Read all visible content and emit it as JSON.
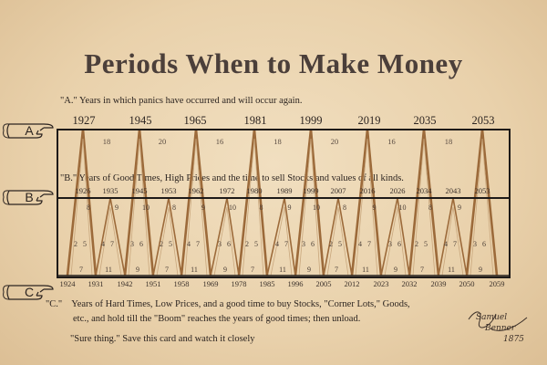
{
  "title": "Periods When to Make Money",
  "captions": {
    "a": "\"A.\" Years in which panics have occurred and will occur again.",
    "b": "\"B.\" Years of Good Times, High Prices and the time to sell Stocks and values of all kinds.",
    "c_lead": "\"C.\"",
    "c_line1": "Years of Hard Times, Low Prices, and a good time to buy Stocks, \"Corner Lots,\" Goods,",
    "c_line2": "etc., and hold till  the \"Boom\" reaches the years of good times; then unload.",
    "sure": "\"Sure thing.\" Save this card and watch it closely"
  },
  "row_labels": [
    "A",
    "B",
    "C"
  ],
  "panic_years": [
    "1927",
    "1945",
    "1965",
    "1981",
    "1999",
    "2019",
    "2035",
    "2053"
  ],
  "panic_gaps": [
    "18",
    "20",
    "16",
    "18",
    "20",
    "16",
    "18"
  ],
  "good_years": [
    "1926",
    "1935",
    "1945",
    "1953",
    "1962",
    "1972",
    "1980",
    "1989",
    "1999",
    "2007",
    "2016",
    "2026",
    "2034",
    "2043",
    "2053"
  ],
  "hard_years": [
    "1924",
    "1931",
    "1942",
    "1951",
    "1958",
    "1969",
    "1978",
    "1985",
    "1996",
    "2005",
    "2012",
    "2023",
    "2032",
    "2039",
    "2050",
    "2059"
  ],
  "upper_gap_numbers": [
    "8",
    "9",
    "10",
    "8",
    "9",
    "10",
    "8",
    "9",
    "10",
    "8",
    "9",
    "10",
    "8",
    "9"
  ],
  "pair_numbers": [
    [
      "2",
      "5"
    ],
    [
      "4",
      "7"
    ],
    [
      "3",
      "6"
    ],
    [
      "2",
      "5"
    ],
    [
      "4",
      "7"
    ],
    [
      "3",
      "6"
    ],
    [
      "2",
      "5"
    ],
    [
      "4",
      "7"
    ],
    [
      "3",
      "6"
    ],
    [
      "2",
      "5"
    ],
    [
      "4",
      "7"
    ],
    [
      "3",
      "6"
    ],
    [
      "2",
      "5"
    ],
    [
      "4",
      "7"
    ],
    [
      "3",
      "6"
    ]
  ],
  "lower_gap_numbers": [
    "7",
    "11",
    "9",
    "7",
    "11",
    "9",
    "7",
    "11",
    "9",
    "7",
    "11",
    "9",
    "7",
    "11",
    "9"
  ],
  "signature": [
    "Samuel",
    "Benner",
    "1875"
  ],
  "colors": {
    "background": "#ecd7b4",
    "line": "#9c6a3a",
    "frame": "#1e1a18",
    "title": "#4b3f3a"
  }
}
